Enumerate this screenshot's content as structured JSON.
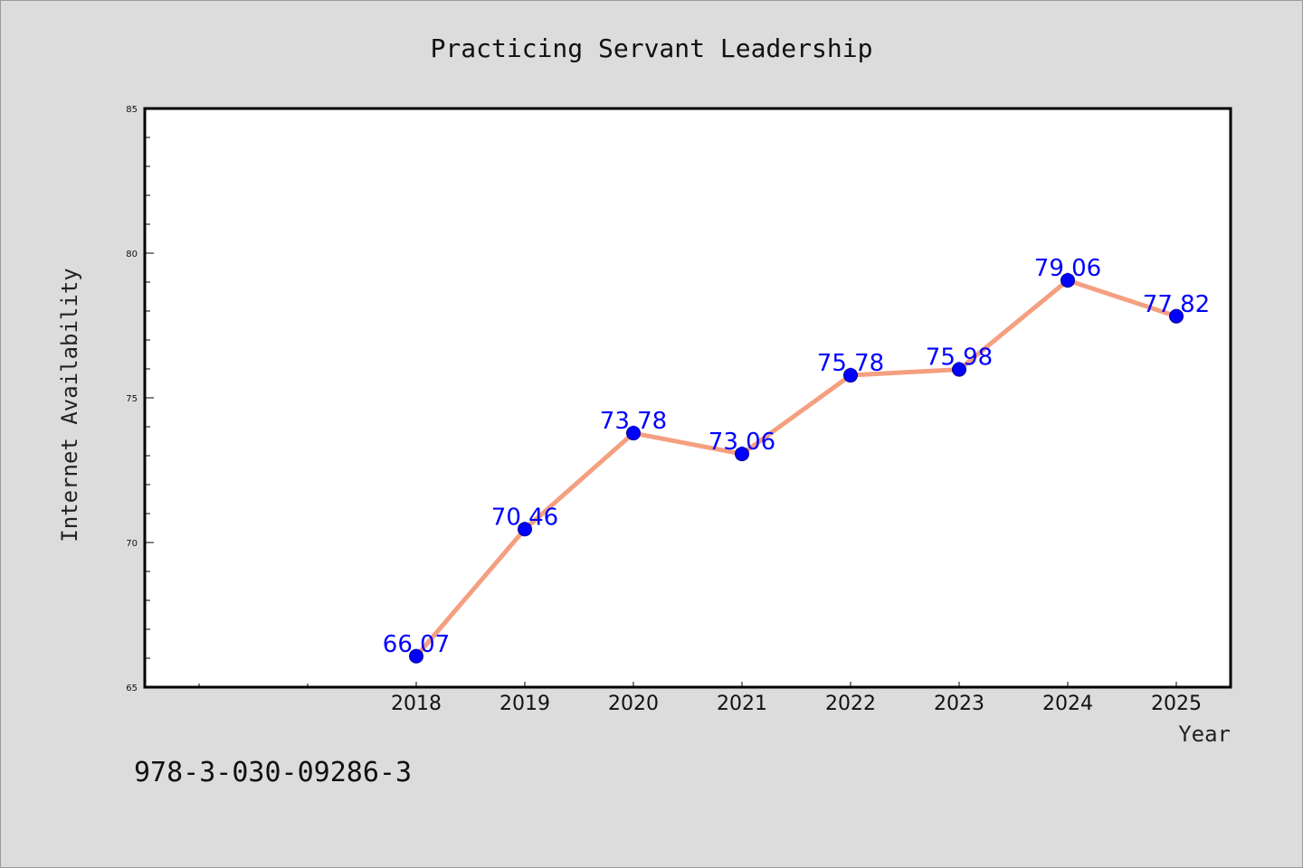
{
  "chart_data": {
    "type": "line",
    "title": "Practicing Servant Leadership",
    "xlabel": "Year",
    "ylabel": "Internet Availability",
    "categories": [
      "2018",
      "2019",
      "2020",
      "2021",
      "2022",
      "2023",
      "2024",
      "2025"
    ],
    "values": [
      66.07,
      70.46,
      73.78,
      73.06,
      75.78,
      75.98,
      79.06,
      77.82
    ],
    "value_labels": [
      "66.07",
      "70.46",
      "73.78",
      "73.06",
      "75.78",
      "75.98",
      "79.06",
      "77.82"
    ],
    "ylim": [
      65,
      85
    ],
    "yticks": [
      "65",
      "70",
      "75",
      "80",
      "85"
    ],
    "grid": false,
    "line_color": "#f4a080",
    "marker_color": "#0000ff",
    "label_color": "#0000ff"
  },
  "footer": {
    "isbn": "978-3-030-09286-3"
  }
}
